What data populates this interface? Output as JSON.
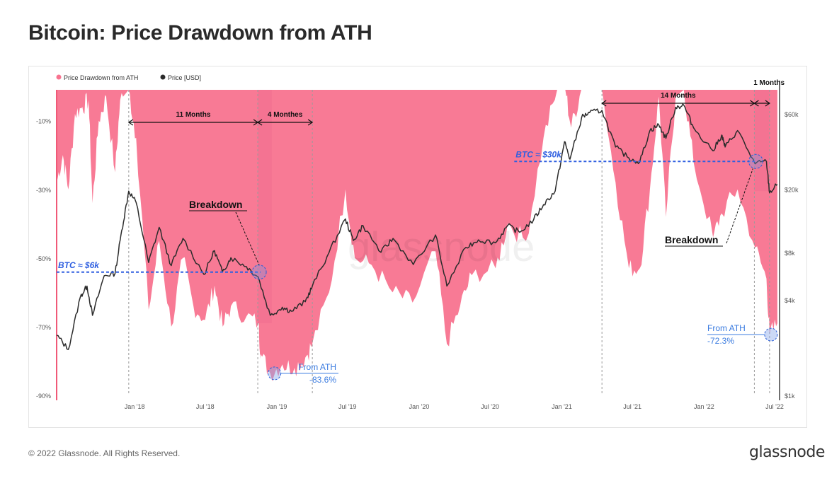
{
  "title": "Bitcoin: Price Drawdown from ATH",
  "footer": {
    "copyright": "© 2022 Glassnode. All Rights Reserved.",
    "logo": "glassnode"
  },
  "watermark": "glassnode",
  "colors": {
    "drawdown": "#f8738f",
    "price": "#2b2b2b",
    "guide": "#2f5fe0",
    "highlight": "#9b6bb3",
    "annot": "#3a7be0"
  },
  "chart_data": {
    "type": "area",
    "legend": [
      {
        "label": "Price Drawdown from ATH",
        "color": "#f8738f"
      },
      {
        "label": "Price [USD]",
        "color": "#2b2b2b"
      }
    ],
    "legend_position": "top-left",
    "x_ticks": [
      "Jan '18",
      "Jul '18",
      "Jan '19",
      "Jul '19",
      "Jan '20",
      "Jul '20",
      "Jan '21",
      "Jul '21",
      "Jan '22",
      "Jul '22"
    ],
    "x_tick_dates": [
      "2018-01-01",
      "2018-07-01",
      "2019-01-01",
      "2019-07-01",
      "2020-01-01",
      "2020-07-01",
      "2021-01-01",
      "2021-07-01",
      "2022-01-01",
      "2022-07-01"
    ],
    "x_range": [
      "2017-06-15",
      "2022-07-10"
    ],
    "left_axis": {
      "ticks": [
        "-10%",
        "-30%",
        "-50%",
        "-70%",
        "-90%"
      ],
      "values": [
        -10,
        -30,
        -50,
        -70,
        -90
      ],
      "range": [
        -1,
        -90
      ]
    },
    "right_axis": {
      "scale": "log",
      "ticks": [
        "$60k",
        "$20k",
        "$8k",
        "$4k",
        "$1k"
      ],
      "values": [
        60000,
        20000,
        8000,
        4000,
        1000
      ],
      "range": [
        1000,
        85000
      ]
    },
    "series": [
      {
        "name": "Price Drawdown from ATH",
        "unit": "%",
        "points": [
          [
            "2017-06-15",
            -28
          ],
          [
            "2017-07-01",
            -20
          ],
          [
            "2017-07-15",
            -30
          ],
          [
            "2017-08-01",
            -8
          ],
          [
            "2017-08-20",
            -6
          ],
          [
            "2017-09-05",
            -4
          ],
          [
            "2017-09-15",
            -34
          ],
          [
            "2017-10-01",
            -10
          ],
          [
            "2017-10-20",
            -3
          ],
          [
            "2017-11-12",
            -25
          ],
          [
            "2017-11-25",
            -4
          ],
          [
            "2017-12-17",
            -1
          ],
          [
            "2018-01-05",
            -15
          ],
          [
            "2018-02-06",
            -65
          ],
          [
            "2018-03-05",
            -45
          ],
          [
            "2018-04-05",
            -70
          ],
          [
            "2018-05-05",
            -50
          ],
          [
            "2018-06-01",
            -64
          ],
          [
            "2018-07-01",
            -68
          ],
          [
            "2018-07-25",
            -58
          ],
          [
            "2018-08-15",
            -70
          ],
          [
            "2018-09-05",
            -64
          ],
          [
            "2018-10-15",
            -67
          ],
          [
            "2018-11-15",
            -69
          ],
          [
            "2018-11-20",
            -78
          ],
          [
            "2018-12-15",
            -83.6
          ],
          [
            "2019-01-15",
            -81
          ],
          [
            "2019-02-15",
            -82
          ],
          [
            "2019-03-15",
            -79
          ],
          [
            "2019-04-02",
            -75
          ],
          [
            "2019-05-15",
            -60
          ],
          [
            "2019-06-26",
            -30
          ],
          [
            "2019-07-20",
            -50
          ],
          [
            "2019-09-01",
            -52
          ],
          [
            "2019-10-25",
            -60
          ],
          [
            "2019-12-15",
            -63
          ],
          [
            "2020-02-12",
            -48
          ],
          [
            "2020-03-12",
            -75
          ],
          [
            "2020-04-15",
            -64
          ],
          [
            "2020-05-15",
            -55
          ],
          [
            "2020-07-15",
            -53
          ],
          [
            "2020-08-15",
            -40
          ],
          [
            "2020-10-01",
            -45
          ],
          [
            "2020-11-15",
            -15
          ],
          [
            "2020-12-20",
            -1
          ],
          [
            "2021-01-10",
            -1
          ],
          [
            "2021-01-25",
            -12
          ],
          [
            "2021-02-20",
            -1
          ],
          [
            "2021-03-15",
            -1
          ],
          [
            "2021-04-14",
            -1
          ],
          [
            "2021-05-19",
            -28
          ],
          [
            "2021-06-22",
            -53
          ],
          [
            "2021-07-20",
            -53
          ],
          [
            "2021-08-15",
            -30
          ],
          [
            "2021-09-07",
            -3
          ],
          [
            "2021-09-25",
            -38
          ],
          [
            "2021-10-20",
            -3
          ],
          [
            "2021-11-10",
            -1
          ],
          [
            "2021-12-05",
            -22
          ],
          [
            "2022-01-24",
            -44
          ],
          [
            "2022-02-15",
            -37
          ],
          [
            "2022-03-28",
            -30
          ],
          [
            "2022-05-12",
            -47
          ],
          [
            "2022-06-10",
            -56
          ],
          [
            "2022-06-18",
            -72.3
          ],
          [
            "2022-07-08",
            -69
          ]
        ]
      },
      {
        "name": "Price [USD]",
        "unit": "USD",
        "points": [
          [
            "2017-06-15",
            2400
          ],
          [
            "2017-07-15",
            1950
          ],
          [
            "2017-08-15",
            4200
          ],
          [
            "2017-09-01",
            4900
          ],
          [
            "2017-09-15",
            3200
          ],
          [
            "2017-10-15",
            5700
          ],
          [
            "2017-11-12",
            5900
          ],
          [
            "2017-11-29",
            11000
          ],
          [
            "2017-12-17",
            19500
          ],
          [
            "2018-01-05",
            16500
          ],
          [
            "2018-02-06",
            6900
          ],
          [
            "2018-03-05",
            11500
          ],
          [
            "2018-04-05",
            6600
          ],
          [
            "2018-05-05",
            9800
          ],
          [
            "2018-06-28",
            5800
          ],
          [
            "2018-07-25",
            8200
          ],
          [
            "2018-08-14",
            6000
          ],
          [
            "2018-09-05",
            7400
          ],
          [
            "2018-10-15",
            6500
          ],
          [
            "2018-11-14",
            5600
          ],
          [
            "2018-12-15",
            3200
          ],
          [
            "2019-01-15",
            3600
          ],
          [
            "2019-02-07",
            3400
          ],
          [
            "2019-03-15",
            3900
          ],
          [
            "2019-04-02",
            4900
          ],
          [
            "2019-05-15",
            8000
          ],
          [
            "2019-06-26",
            13000
          ],
          [
            "2019-07-16",
            9500
          ],
          [
            "2019-08-10",
            11800
          ],
          [
            "2019-09-25",
            8000
          ],
          [
            "2019-10-26",
            9800
          ],
          [
            "2019-12-17",
            6700
          ],
          [
            "2020-02-12",
            10300
          ],
          [
            "2020-03-12",
            4900
          ],
          [
            "2020-04-30",
            8600
          ],
          [
            "2020-06-01",
            9600
          ],
          [
            "2020-07-15",
            9200
          ],
          [
            "2020-08-15",
            11800
          ],
          [
            "2020-09-15",
            10700
          ],
          [
            "2020-10-21",
            12900
          ],
          [
            "2020-11-15",
            16000
          ],
          [
            "2020-12-15",
            19500
          ],
          [
            "2021-01-08",
            40000
          ],
          [
            "2021-01-22",
            31000
          ],
          [
            "2021-02-21",
            57000
          ],
          [
            "2021-03-13",
            61000
          ],
          [
            "2021-04-14",
            63000
          ],
          [
            "2021-05-19",
            37000
          ],
          [
            "2021-06-22",
            31500
          ],
          [
            "2021-07-20",
            29800
          ],
          [
            "2021-08-15",
            47000
          ],
          [
            "2021-09-07",
            51000
          ],
          [
            "2021-09-25",
            42000
          ],
          [
            "2021-10-20",
            66000
          ],
          [
            "2021-11-10",
            68000
          ],
          [
            "2021-12-05",
            49000
          ],
          [
            "2022-01-24",
            35000
          ],
          [
            "2022-02-15",
            44000
          ],
          [
            "2022-02-24",
            37000
          ],
          [
            "2022-03-28",
            47000
          ],
          [
            "2022-05-12",
            29000
          ],
          [
            "2022-06-10",
            30000
          ],
          [
            "2022-06-18",
            19000
          ],
          [
            "2022-07-08",
            21500
          ]
        ]
      }
    ],
    "highlights": [
      {
        "from": "2018-11-13",
        "to": "2018-12-19"
      },
      {
        "from": "2022-05-10",
        "to": "2022-06-18"
      }
    ],
    "vertical_markers": [
      "2017-12-17",
      "2018-11-13",
      "2019-04-02",
      "2021-04-14",
      "2022-05-10",
      "2022-06-18"
    ],
    "spans": [
      {
        "label": "11 Months",
        "from": "2017-12-17",
        "to": "2018-11-13",
        "row": "upper"
      },
      {
        "label": "4 Monthes",
        "from": "2018-11-13",
        "to": "2019-04-02",
        "row": "upper"
      },
      {
        "label": "14 Months",
        "from": "2021-04-14",
        "to": "2022-05-10",
        "row": "top"
      },
      {
        "label": "1 Months",
        "from": "2022-05-10",
        "to": "2022-06-18",
        "row": "top"
      }
    ],
    "levels": [
      {
        "label": "BTC ≈ $6k",
        "value": 6000,
        "from": "2017-06-15",
        "to": "2018-11-20",
        "label_side": "left"
      },
      {
        "label": "BTC ≈ $30k",
        "value": 30000,
        "from": "2020-09-01",
        "to": "2022-05-15",
        "label_side": "left"
      }
    ],
    "annotations": [
      {
        "label": "Breakdown",
        "date": "2018-11-13",
        "price": 6000,
        "style": "bold-underline"
      },
      {
        "label": "Breakdown",
        "date": "2022-05-10",
        "price": 30000,
        "style": "bold-underline"
      },
      {
        "line1": "From ATH",
        "line2": "-83.6%",
        "date": "2018-12-15",
        "drawdown": -83.6
      },
      {
        "line1": "From ATH",
        "line2": "-72.3%",
        "date": "2022-06-18",
        "drawdown": -72.3
      }
    ]
  }
}
